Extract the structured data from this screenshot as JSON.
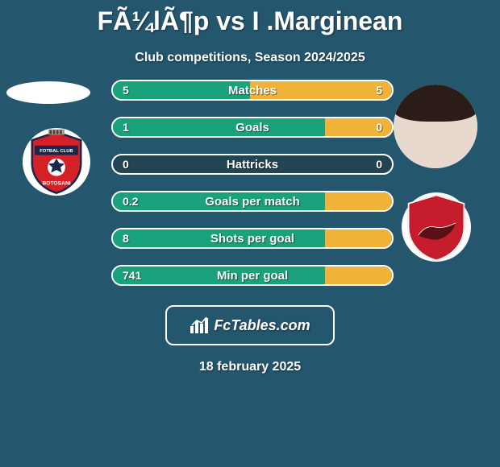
{
  "background_color": "#24566d",
  "title": "FÃ¼lÃ¶p vs I .Marginean",
  "subtitle": "Club competitions, Season 2024/2025",
  "date": "18 february 2025",
  "watermark": {
    "text": "FcTables.com"
  },
  "bar_style": {
    "track_color": "#214553",
    "left_fill_color": "#1aa27d",
    "right_fill_color": "#f0b238",
    "border_color": "#ffffff",
    "text_color": "#ffffff"
  },
  "rows": [
    {
      "label": "Matches",
      "left": "5",
      "right": "5",
      "leftPct": 51,
      "rightPct": 51
    },
    {
      "label": "Goals",
      "left": "1",
      "right": "0",
      "leftPct": 76,
      "rightPct": 24
    },
    {
      "label": "Hattricks",
      "left": "0",
      "right": "0",
      "leftPct": 0,
      "rightPct": 0
    },
    {
      "label": "Goals per match",
      "left": "0.2",
      "right": "",
      "leftPct": 76,
      "rightPct": 24
    },
    {
      "label": "Shots per goal",
      "left": "8",
      "right": "",
      "leftPct": 76,
      "rightPct": 24
    },
    {
      "label": "Min per goal",
      "left": "741",
      "right": "",
      "leftPct": 76,
      "rightPct": 24
    }
  ],
  "left_player": {
    "name": "Fülöp"
  },
  "left_club": {
    "badge_bg": "#ffffff",
    "inner_bg": "#d62027",
    "band_color": "#17284a",
    "text": "FOTBAL CLUB",
    "bottom_text": "BOTOSANI"
  },
  "right_player": {
    "name": "I. Marginean"
  },
  "right_club": {
    "badge_bg": "#ffffff",
    "inner_bg": "#c51d2c"
  }
}
